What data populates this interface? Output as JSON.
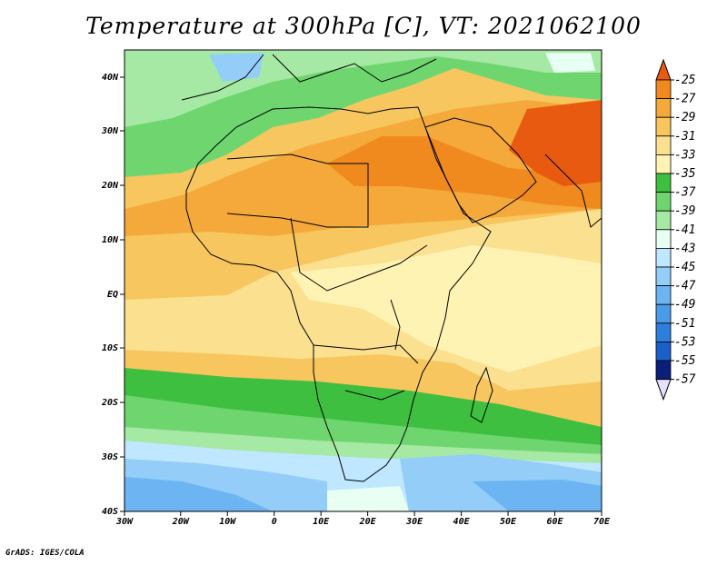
{
  "title": "Temperature at 300hPa [C], VT: 2021062100",
  "credit": "GrADS: IGES/COLA",
  "lon_labels": [
    "30W",
    "20W",
    "10W",
    "0",
    "10E",
    "20E",
    "30E",
    "40E",
    "50E",
    "60E",
    "70E"
  ],
  "lat_labels": [
    "40N",
    "30N",
    "20N",
    "10N",
    "EQ",
    "10S",
    "20S",
    "30S",
    "40S"
  ],
  "colorbar": {
    "levels": [
      "-25",
      "-27",
      "-29",
      "-31",
      "-33",
      "-35",
      "-37",
      "-39",
      "-41",
      "-43",
      "-45",
      "-47",
      "-49",
      "-51",
      "-53",
      "-55",
      "-57"
    ],
    "colors": [
      "#e85a0f",
      "#f08a1e",
      "#f5a93a",
      "#f7c65f",
      "#fbe08f",
      "#fff3b3",
      "#3fbf3f",
      "#6fd66f",
      "#a5e9a5",
      "#e8fff4",
      "#bfe7ff",
      "#93cdf8",
      "#6cb4f2",
      "#4a9be8",
      "#2d7fdb",
      "#1b5fc8",
      "#0b1f7a"
    ]
  }
}
